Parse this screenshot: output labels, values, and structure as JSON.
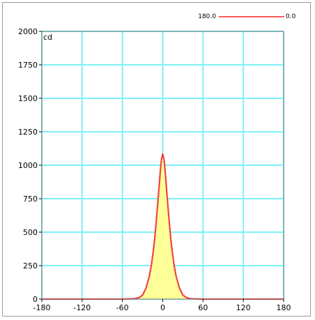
{
  "chart_data": {
    "type": "area",
    "ylabel": "cd",
    "xlim": [
      -180,
      180
    ],
    "ylim": [
      0,
      2000
    ],
    "x_ticks": [
      -180,
      -120,
      -60,
      0,
      60,
      120,
      180
    ],
    "y_ticks": [
      0,
      250,
      500,
      750,
      1000,
      1250,
      1500,
      1750,
      2000
    ],
    "x_tick_labels": [
      "-180",
      "-120",
      "-60",
      "0",
      "60",
      "120",
      "180"
    ],
    "y_tick_labels": [
      "0",
      "250",
      "500",
      "750",
      "1000",
      "1250",
      "1500",
      "1750",
      "2000"
    ],
    "grid": true,
    "legend_position": "top-right",
    "legend": {
      "left_label": "180.0",
      "right_label": "0.0"
    },
    "series": [
      {
        "x": [
          -180,
          -120,
          -90,
          -60,
          -45,
          -40,
          -35,
          -30,
          -25,
          -20,
          -17,
          -14,
          -12,
          -10,
          -8,
          -6,
          -4,
          -2,
          0,
          2,
          4,
          6,
          8,
          10,
          12,
          14,
          17,
          20,
          25,
          30,
          35,
          40,
          45,
          60,
          90,
          120,
          180
        ],
        "values": [
          0,
          0,
          0,
          0,
          2,
          5,
          12,
          30,
          80,
          170,
          250,
          360,
          450,
          560,
          680,
          800,
          930,
          1040,
          1085,
          1040,
          930,
          800,
          680,
          560,
          450,
          360,
          250,
          170,
          80,
          30,
          12,
          5,
          2,
          0,
          0,
          0,
          0
        ]
      }
    ],
    "colors": {
      "line": "#ee4444",
      "fill": "#ffff99",
      "grid": "#7ff0f8",
      "legend_line": "#ff5a5a"
    }
  }
}
